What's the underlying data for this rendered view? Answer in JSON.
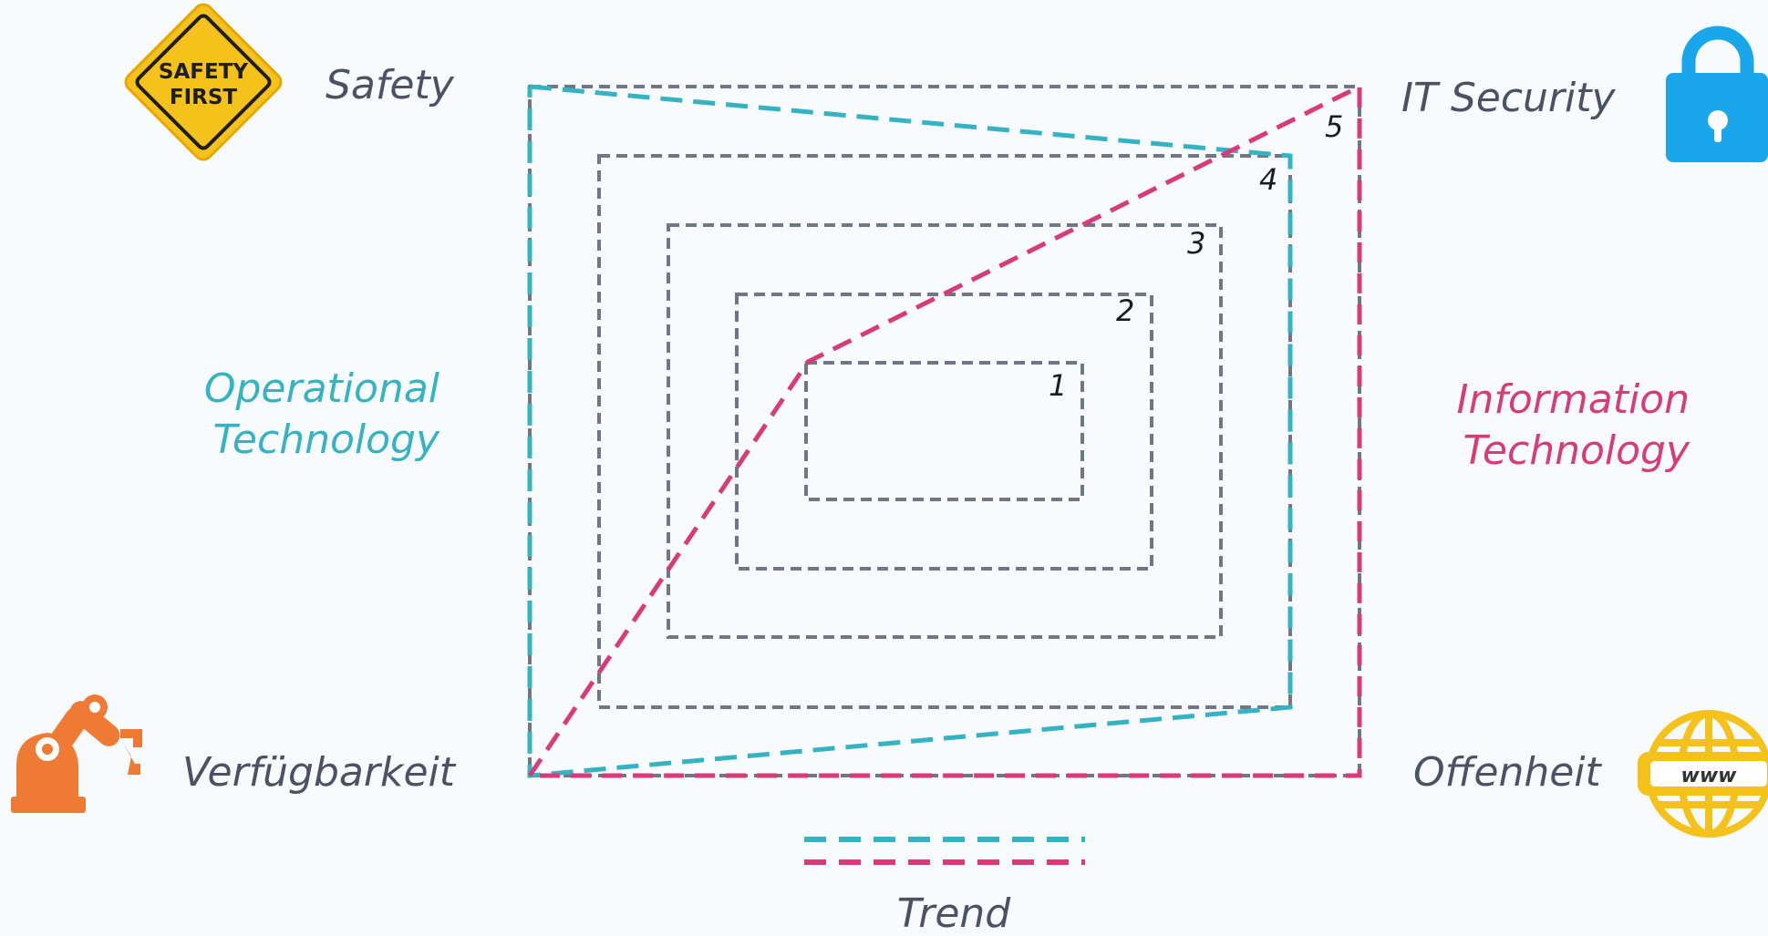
{
  "corners": {
    "top_left": "Safety",
    "top_right": "IT Security",
    "bottom_left": "Verfügbarkeit",
    "bottom_right": "Offenheit"
  },
  "sides": {
    "left_line1": "Operational",
    "left_line2": "Technology",
    "right_line1": "Information",
    "right_line2": "Technology"
  },
  "levels": [
    "1",
    "2",
    "3",
    "4",
    "5"
  ],
  "safety_sign": {
    "line1": "SAFETY",
    "line2": "FIRST"
  },
  "globe_text": "www",
  "legend_label": "Trend",
  "colors": {
    "ot": "#35b3c2",
    "it": "#d93a78",
    "frame": "#6f7686",
    "text": "#4a5264",
    "sign": "#f5c21b",
    "lock": "#1aa6ea",
    "robot": "#ee7a33",
    "globe": "#f5c21b"
  }
}
